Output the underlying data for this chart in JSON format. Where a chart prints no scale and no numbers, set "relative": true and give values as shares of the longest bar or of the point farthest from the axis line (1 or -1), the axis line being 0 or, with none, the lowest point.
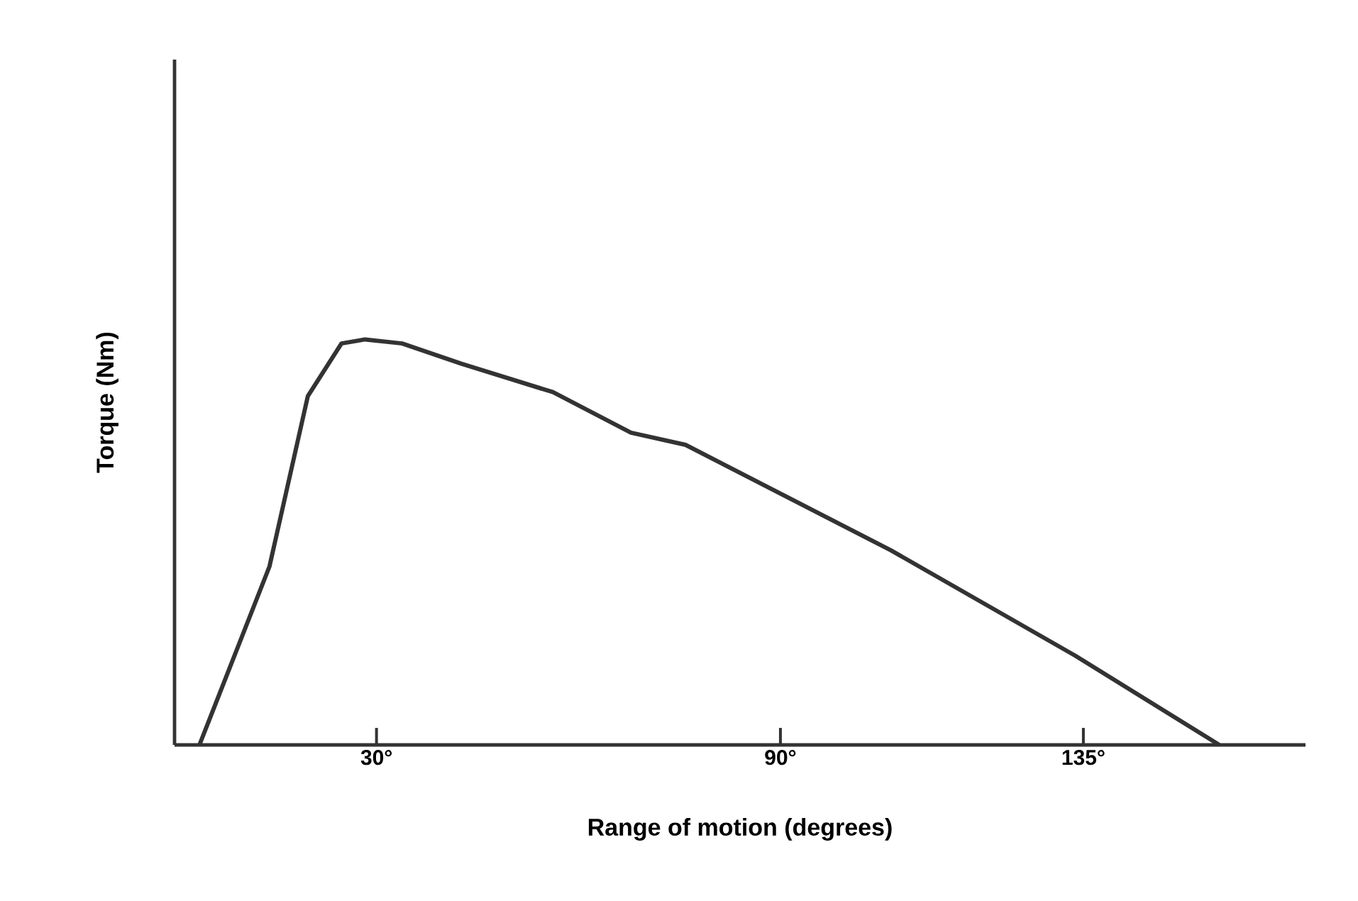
{
  "chart_data": {
    "type": "line",
    "xlabel": "Range of motion (degrees)",
    "ylabel": "Torque (Nm)",
    "relative": true,
    "tick_labels": "x",
    "marker": "none",
    "line_style": "solid",
    "xlim": [
      0,
      168
    ],
    "xticks": [
      {
        "value": 30,
        "label": "30°"
      },
      {
        "value": 90,
        "label": "90°"
      },
      {
        "value": 135,
        "label": "135°"
      }
    ],
    "series": [
      {
        "color": "#333333",
        "x": [
          3.7,
          14.1,
          19.8,
          24.8,
          28.3,
          33.8,
          42.6,
          56.2,
          67.8,
          75.9,
          106.4,
          133.8,
          155.2
        ],
        "values": [
          0,
          0.44,
          0.86,
          0.99,
          1.0,
          0.99,
          0.94,
          0.87,
          0.77,
          0.74,
          0.48,
          0.22,
          0
        ]
      }
    ]
  }
}
